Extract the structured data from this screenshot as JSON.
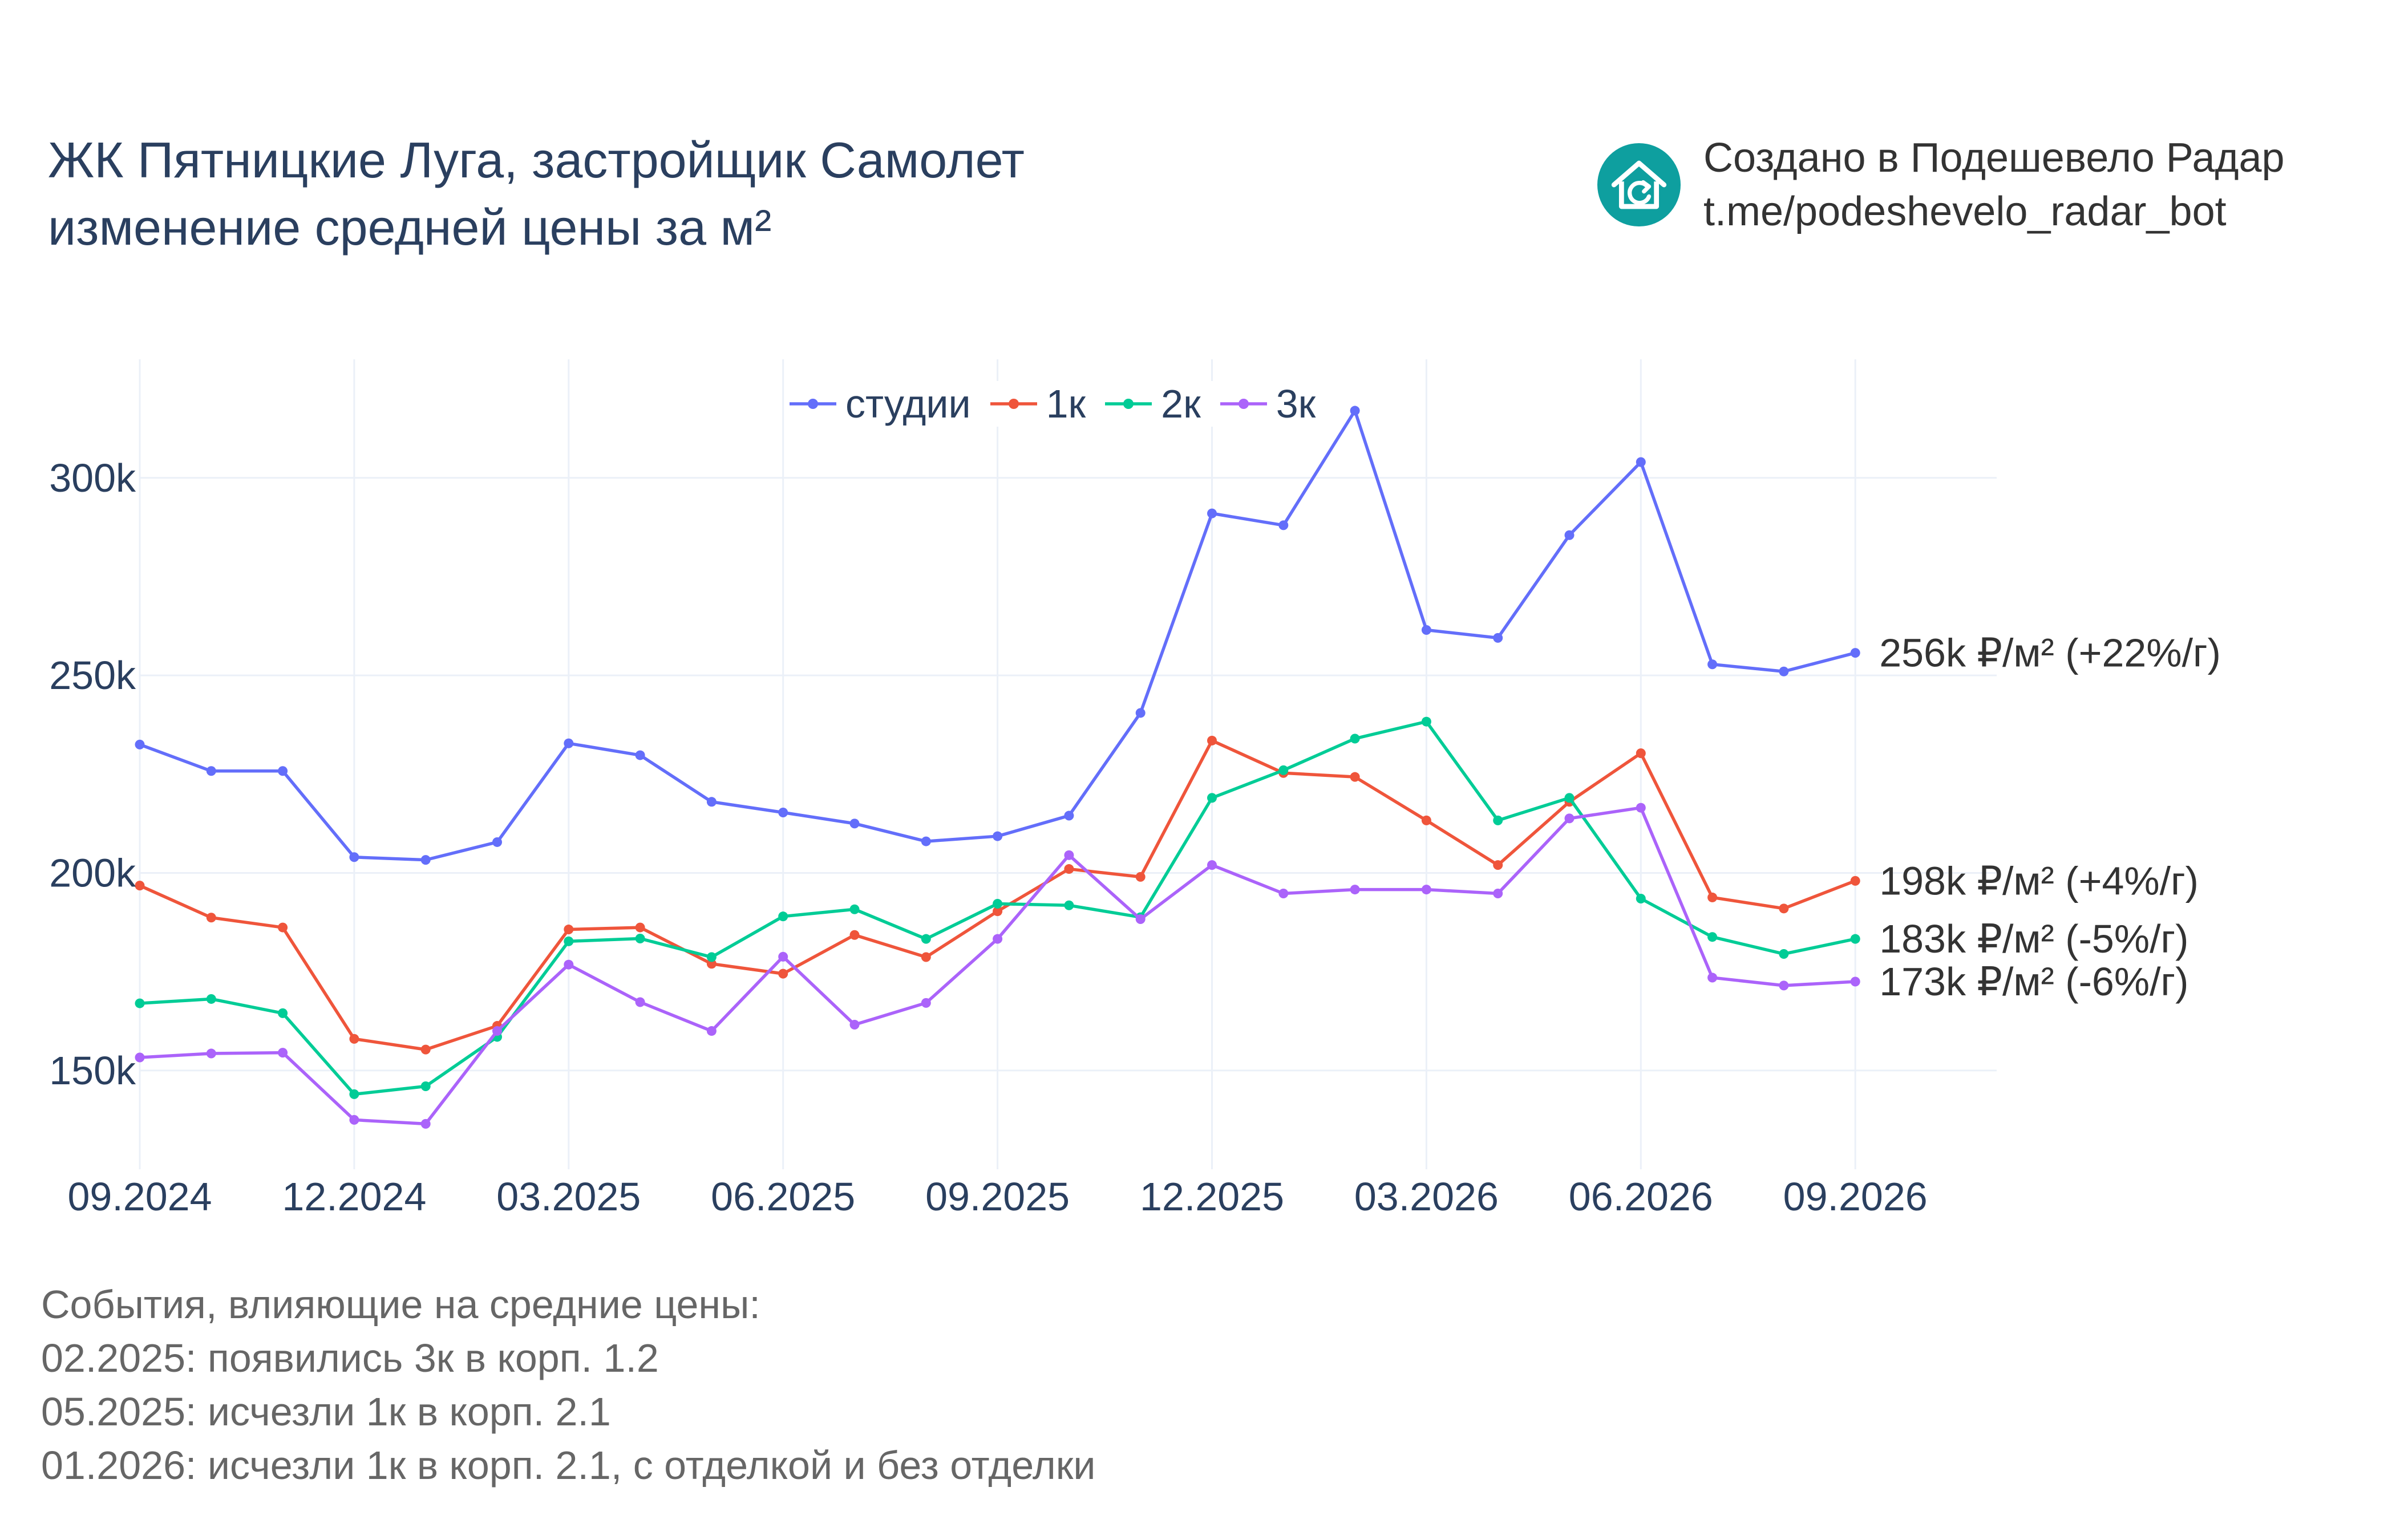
{
  "header": {
    "title_line1": "ЖК Пятницкие Луга, застройщик Самолет",
    "title_line2": "изменение средней цены за м²"
  },
  "brand": {
    "line1": "Создано в Подешевело Радар",
    "line2": "t.me/podeshevelo_radar_bot",
    "logo_icon": "house-refresh-icon",
    "logo_color": "#0e9f9f"
  },
  "chart_data": {
    "type": "line",
    "x": [
      "09.2024",
      "10.2024",
      "11.2024",
      "12.2024",
      "01.2025",
      "02.2025",
      "03.2025",
      "04.2025",
      "05.2025",
      "06.2025",
      "07.2025",
      "08.2025",
      "09.2025",
      "10.2025",
      "11.2025",
      "12.2025",
      "01.2026",
      "02.2026",
      "03.2026",
      "04.2026",
      "05.2026",
      "06.2026",
      "07.2026",
      "08.2026",
      "09.2026"
    ],
    "x_ticks": [
      "09.2024",
      "12.2024",
      "03.2025",
      "06.2025",
      "09.2025",
      "12.2025",
      "03.2026",
      "06.2026",
      "09.2026"
    ],
    "y_ticks": [
      150000,
      200000,
      250000,
      300000
    ],
    "y_tick_labels": [
      "150k",
      "200k",
      "250k",
      "300k"
    ],
    "ylim": [
      125000,
      330000
    ],
    "grid": true,
    "legend_position": "top-center",
    "series": [
      {
        "name": "студии",
        "color": "#636efa",
        "values": [
          232500,
          225800,
          225800,
          204000,
          203300,
          207800,
          232800,
          229800,
          218000,
          215300,
          212500,
          208000,
          209300,
          214500,
          240500,
          291000,
          288000,
          317000,
          261500,
          259500,
          285500,
          304000,
          252800,
          251000,
          255700
        ],
        "end_label": "256k ₽/м² (+22%/г)"
      },
      {
        "name": "1к",
        "color": "#ef553b",
        "values": [
          196800,
          188700,
          186200,
          158000,
          155300,
          161300,
          185700,
          186200,
          177000,
          174500,
          184300,
          178700,
          190300,
          201000,
          199000,
          233500,
          225300,
          224300,
          213300,
          202000,
          218000,
          230300,
          193800,
          191000,
          198000
        ],
        "end_label": "198k ₽/м² (+4%/г)"
      },
      {
        "name": "2к",
        "color": "#00cc96",
        "values": [
          167000,
          168100,
          164500,
          144000,
          146000,
          158500,
          182700,
          183400,
          178700,
          189000,
          190800,
          183300,
          192200,
          191800,
          188800,
          219000,
          226000,
          234000,
          238300,
          213300,
          219000,
          193500,
          183800,
          179500,
          183300
        ],
        "end_label": "183k ₽/м² (-5%/г)"
      },
      {
        "name": "3к",
        "color": "#ab63fa",
        "values": [
          153300,
          154300,
          154500,
          137500,
          136500,
          160000,
          176800,
          167300,
          160000,
          178800,
          161600,
          167100,
          183300,
          204500,
          188300,
          202000,
          194800,
          195800,
          195800,
          194800,
          213800,
          216500,
          173500,
          171500,
          172500
        ],
        "end_label": "173k ₽/м² (-6%/г)"
      }
    ]
  },
  "events": {
    "heading": "События, влияющие на средние цены:",
    "items": [
      "02.2025: появились 3к в корп. 1.2",
      "05.2025: исчезли 1к в корп. 2.1",
      "01.2026: исчезли 1к в корп. 2.1, с отделкой и без отделки"
    ]
  }
}
